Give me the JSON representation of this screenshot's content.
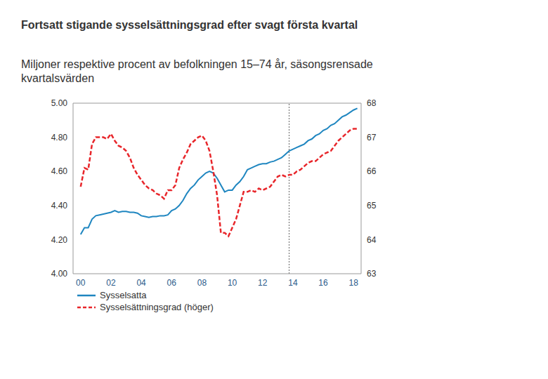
{
  "chart_data": {
    "type": "line",
    "title": "Fortsatt stigande sysselsättningsgrad efter svagt första kvartal",
    "subtitle": "Miljoner respektive procent av befolkningen 15–74 år, säsongsrensade kvartalsvärden",
    "x": [
      2000,
      2000.25,
      2000.5,
      2000.75,
      2001,
      2001.25,
      2001.5,
      2001.75,
      2002,
      2002.25,
      2002.5,
      2002.75,
      2003,
      2003.25,
      2003.5,
      2003.75,
      2004,
      2004.25,
      2004.5,
      2004.75,
      2005,
      2005.25,
      2005.5,
      2005.75,
      2006,
      2006.25,
      2006.5,
      2006.75,
      2007,
      2007.25,
      2007.5,
      2007.75,
      2008,
      2008.25,
      2008.5,
      2008.75,
      2009,
      2009.25,
      2009.5,
      2009.75,
      2010,
      2010.25,
      2010.5,
      2010.75,
      2011,
      2011.25,
      2011.5,
      2011.75,
      2012,
      2012.25,
      2012.5,
      2012.75,
      2013,
      2013.25,
      2013.5,
      2013.75,
      2014,
      2014.25,
      2014.5,
      2014.75,
      2015,
      2015.25,
      2015.5,
      2015.75,
      2016,
      2016.25,
      2016.5,
      2016.75,
      2017,
      2017.25,
      2017.5,
      2017.75,
      2018,
      2018.25
    ],
    "series": [
      {
        "name": "Sysselsatta",
        "color": "#1f86c0",
        "line_style": "solid",
        "values": [
          4.23,
          4.27,
          4.27,
          4.32,
          4.34,
          4.345,
          4.35,
          4.355,
          4.36,
          4.37,
          4.36,
          4.365,
          4.365,
          4.36,
          4.36,
          4.355,
          4.34,
          4.335,
          4.33,
          4.335,
          4.335,
          4.34,
          4.34,
          4.345,
          4.37,
          4.38,
          4.4,
          4.43,
          4.47,
          4.5,
          4.52,
          4.55,
          4.57,
          4.59,
          4.6,
          4.59,
          4.56,
          4.52,
          4.48,
          4.49,
          4.49,
          4.52,
          4.54,
          4.57,
          4.61,
          4.62,
          4.63,
          4.64,
          4.645,
          4.645,
          4.655,
          4.66,
          4.67,
          4.68,
          4.7,
          4.72,
          4.73,
          4.74,
          4.75,
          4.76,
          4.78,
          4.79,
          4.81,
          4.82,
          4.84,
          4.85,
          4.87,
          4.88,
          4.9,
          4.92,
          4.93,
          4.945,
          4.96,
          4.97
        ]
      },
      {
        "name": "Sysselsättningsgrad (höger)",
        "color": "#e8262b",
        "line_style": "dashed",
        "axis": "y2",
        "values": [
          65.55,
          66.1,
          66.05,
          66.8,
          67.0,
          67.0,
          67.0,
          66.95,
          67.1,
          66.9,
          66.75,
          66.7,
          66.6,
          66.4,
          66.1,
          65.9,
          65.75,
          65.6,
          65.5,
          65.45,
          65.35,
          65.3,
          65.2,
          65.45,
          65.45,
          65.6,
          66.1,
          66.35,
          66.55,
          66.8,
          66.9,
          67.0,
          67.05,
          66.9,
          66.6,
          66.0,
          65.3,
          64.2,
          64.2,
          64.1,
          64.35,
          64.6,
          65.0,
          65.4,
          65.4,
          65.45,
          65.4,
          65.5,
          65.45,
          65.5,
          65.55,
          65.7,
          65.85,
          65.9,
          65.85,
          65.9,
          65.9,
          66.0,
          66.05,
          66.15,
          66.25,
          66.3,
          66.3,
          66.4,
          66.5,
          66.55,
          66.6,
          66.75,
          66.9,
          67.0,
          67.1,
          67.2,
          67.25,
          67.25
        ]
      }
    ],
    "xlim": [
      1999.5,
      2018.5
    ],
    "xticks": [
      {
        "value": 2000,
        "label": "00"
      },
      {
        "value": 2002,
        "label": "02"
      },
      {
        "value": 2004,
        "label": "04"
      },
      {
        "value": 2006,
        "label": "06"
      },
      {
        "value": 2008,
        "label": "08"
      },
      {
        "value": 2010,
        "label": "10"
      },
      {
        "value": 2012,
        "label": "12"
      },
      {
        "value": 2014,
        "label": "14"
      },
      {
        "value": 2016,
        "label": "16"
      },
      {
        "value": 2018,
        "label": "18"
      }
    ],
    "ylim": [
      4,
      5
    ],
    "yticks": [
      {
        "value": 4,
        "label": "4.00"
      },
      {
        "value": 4.2,
        "label": "4.20"
      },
      {
        "value": 4.4,
        "label": "4.40"
      },
      {
        "value": 4.6,
        "label": "4.60"
      },
      {
        "value": 4.8,
        "label": "4.80"
      },
      {
        "value": 5,
        "label": "5.00"
      }
    ],
    "y2lim": [
      63,
      68
    ],
    "y2ticks": [
      63,
      64,
      65,
      66,
      67,
      68
    ],
    "vline_x": 2013.75,
    "grid": false,
    "legend": "bottom left"
  }
}
